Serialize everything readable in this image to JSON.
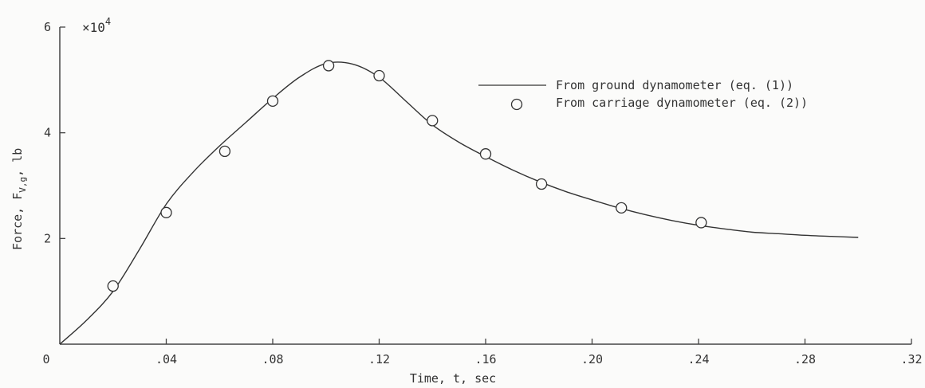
{
  "chart_data": {
    "type": "line",
    "xlabel": "Time, t, sec",
    "ylabel_main": "Force, F",
    "ylabel_sub": "V,g",
    "ylabel_unit": ", lb",
    "y_multiplier": "×10",
    "y_multiplier_exp": "4",
    "xlim": [
      0,
      0.32
    ],
    "ylim": [
      0,
      60000
    ],
    "x_ticks": [
      0,
      0.04,
      0.08,
      0.12,
      0.16,
      0.2,
      0.24,
      0.28,
      0.32
    ],
    "x_tick_labels": [
      "0",
      ".04",
      ".08",
      ".12",
      ".16",
      ".20",
      ".24",
      ".28",
      ".32"
    ],
    "y_ticks": [
      20000,
      40000,
      60000
    ],
    "y_tick_labels": [
      "2",
      "4",
      "6"
    ],
    "grid": false,
    "legend_position": "top-right",
    "series": [
      {
        "name": "From ground dynamometer (eq. (1))",
        "style": "line",
        "color": "#333333",
        "x": [
          0,
          0.01,
          0.02,
          0.03,
          0.04,
          0.05,
          0.06,
          0.07,
          0.08,
          0.09,
          0.1,
          0.11,
          0.12,
          0.13,
          0.14,
          0.15,
          0.16,
          0.17,
          0.18,
          0.19,
          0.2,
          0.21,
          0.22,
          0.23,
          0.24,
          0.25,
          0.26,
          0.27,
          0.28,
          0.29,
          0.3
        ],
        "y": [
          0,
          4500,
          10000,
          18000,
          26500,
          32500,
          37500,
          42000,
          46500,
          50500,
          53100,
          53000,
          50500,
          46000,
          41500,
          38200,
          35500,
          33000,
          30800,
          28900,
          27300,
          25800,
          24500,
          23400,
          22500,
          21800,
          21200,
          20900,
          20600,
          20400,
          20200
        ]
      },
      {
        "name": "From carriage dynamometer (eq. (2))",
        "style": "marker",
        "marker": "circle",
        "color": "#333333",
        "x": [
          0.02,
          0.04,
          0.062,
          0.08,
          0.101,
          0.12,
          0.14,
          0.16,
          0.181,
          0.211,
          0.241
        ],
        "y": [
          11000,
          24900,
          36500,
          46000,
          52700,
          50800,
          42300,
          36000,
          30300,
          25800,
          23000
        ]
      }
    ]
  }
}
